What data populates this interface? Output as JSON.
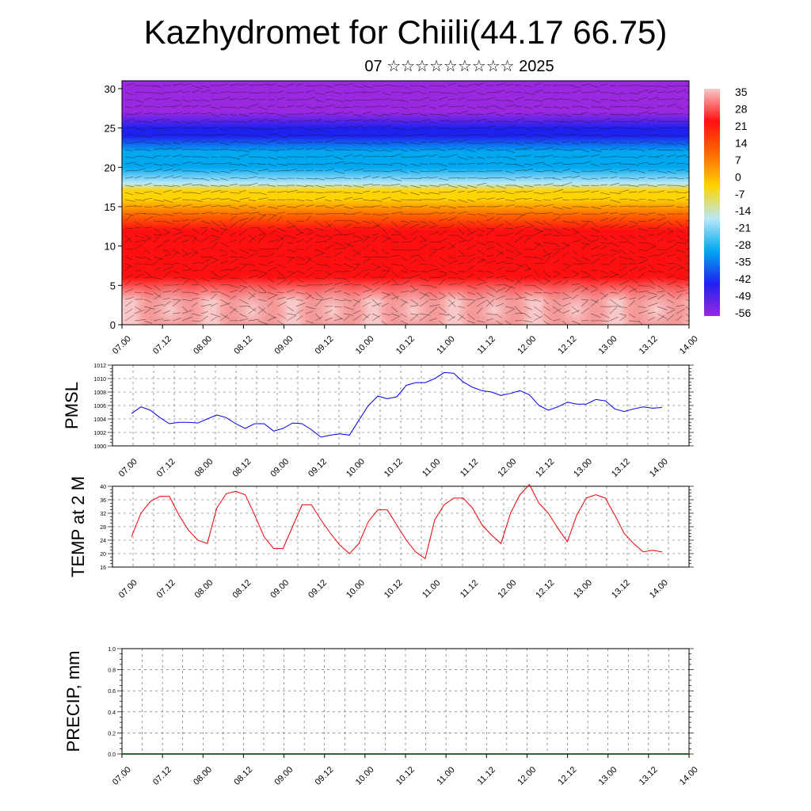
{
  "header": {
    "title": "Kazhydromet for Chiili(44.17 66.75)",
    "subtitle": "07 ☆☆☆☆☆☆☆☆☆ 2025"
  },
  "time_ticks": [
    "07.00",
    "07.12",
    "08.00",
    "08.12",
    "09.00",
    "09.12",
    "10.00",
    "10.12",
    "11.00",
    "11.12",
    "12.00",
    "12.12",
    "13.00",
    "13.12",
    "14.00"
  ],
  "chart_data": [
    {
      "type": "heatmap",
      "ylim": [
        0,
        31
      ],
      "yticks": [
        "0",
        "5",
        "10",
        "15",
        "20",
        "25",
        "30"
      ],
      "colorbar": {
        "labels": [
          "35",
          "28",
          "21",
          "14",
          "7",
          "0",
          "-7",
          "-14",
          "-21",
          "-28",
          "-35",
          "-42",
          "-49",
          "-56"
        ],
        "colors": [
          "#f8c8c8",
          "#ff1010",
          "#ff6a00",
          "#ffd400",
          "#b8e8f8",
          "#00a8f0",
          "#2020f0",
          "#9a28e0"
        ]
      },
      "temperature_profile": {
        "height": [
          0,
          3,
          6,
          9,
          12,
          14,
          16,
          17,
          18,
          20,
          22,
          24,
          25,
          27,
          29,
          31
        ],
        "value": [
          38,
          30,
          28,
          24,
          16,
          7,
          0,
          -10,
          -20,
          -30,
          -38,
          -47,
          -52,
          -56,
          -58,
          -60
        ]
      },
      "wind_barbs": true
    },
    {
      "type": "line",
      "ylabel": "PMSL",
      "ylim": [
        1000,
        1012
      ],
      "yticks": [
        "1000",
        "1002",
        "1004",
        "1006",
        "1008",
        "1010",
        "1012"
      ],
      "color": "#0000ee",
      "x": [
        0,
        1,
        2,
        3,
        4,
        5,
        6,
        7,
        8,
        9,
        10,
        11,
        12,
        13,
        14,
        15,
        16,
        17,
        18,
        19,
        20,
        21,
        22,
        23,
        24,
        25,
        26,
        27,
        28,
        29,
        30,
        31,
        32,
        33,
        34,
        35,
        36,
        37,
        38,
        39,
        40,
        41,
        42,
        43,
        44,
        45,
        46,
        47,
        48,
        49,
        50,
        51,
        52,
        53,
        54,
        55,
        56
      ],
      "values": [
        1004.8,
        1005.8,
        1005.3,
        1004.2,
        1003.3,
        1003.5,
        1003.5,
        1003.4,
        1004.0,
        1004.6,
        1004.2,
        1003.3,
        1002.6,
        1003.3,
        1003.3,
        1002.2,
        1002.6,
        1003.4,
        1003.3,
        1002.4,
        1001.3,
        1001.6,
        1001.8,
        1001.6,
        1003.8,
        1006.0,
        1007.4,
        1007.0,
        1007.3,
        1009.0,
        1009.4,
        1009.4,
        1010.0,
        1010.9,
        1010.8,
        1009.5,
        1008.7,
        1008.2,
        1008.0,
        1007.5,
        1007.8,
        1008.2,
        1007.6,
        1006.0,
        1005.3,
        1005.8,
        1006.5,
        1006.2,
        1006.2,
        1006.9,
        1006.7,
        1005.5,
        1005.1,
        1005.5,
        1005.8,
        1005.6,
        1005.7
      ]
    },
    {
      "type": "line",
      "ylabel": "TEMP at 2 M",
      "ylim": [
        16,
        40
      ],
      "yticks": [
        "16",
        "20",
        "24",
        "28",
        "32",
        "36",
        "40"
      ],
      "color": "#ee0000",
      "x": [
        0,
        1,
        2,
        3,
        4,
        5,
        6,
        7,
        8,
        9,
        10,
        11,
        12,
        13,
        14,
        15,
        16,
        17,
        18,
        19,
        20,
        21,
        22,
        23,
        24,
        25,
        26,
        27,
        28,
        29,
        30,
        31,
        32,
        33,
        34,
        35,
        36,
        37,
        38,
        39,
        40,
        41,
        42,
        43,
        44,
        45,
        46,
        47,
        48,
        49,
        50,
        51,
        52,
        53,
        54,
        55,
        56
      ],
      "values": [
        25,
        32,
        35.5,
        37,
        37,
        31.5,
        27,
        24,
        23,
        33.5,
        37.8,
        38.5,
        37.5,
        31.5,
        25,
        21.5,
        21.5,
        28,
        34.5,
        34.5,
        30,
        26,
        22.5,
        20,
        23,
        29.5,
        33,
        33,
        28.5,
        24,
        20.5,
        18.5,
        30,
        34.5,
        36.5,
        36.5,
        33.5,
        28.5,
        25.5,
        23,
        32,
        37.5,
        40.5,
        35,
        32,
        27.5,
        23.5,
        31.5,
        36.5,
        37.5,
        36.5,
        31.5,
        26,
        23,
        20.5,
        21,
        20.5
      ]
    },
    {
      "type": "bar",
      "ylabel": "PRECIP, mm",
      "ylim": [
        0,
        1.0
      ],
      "yticks": [
        "0.0",
        "0.2",
        "0.4",
        "0.6",
        "0.8",
        "1.0"
      ],
      "values": []
    }
  ]
}
